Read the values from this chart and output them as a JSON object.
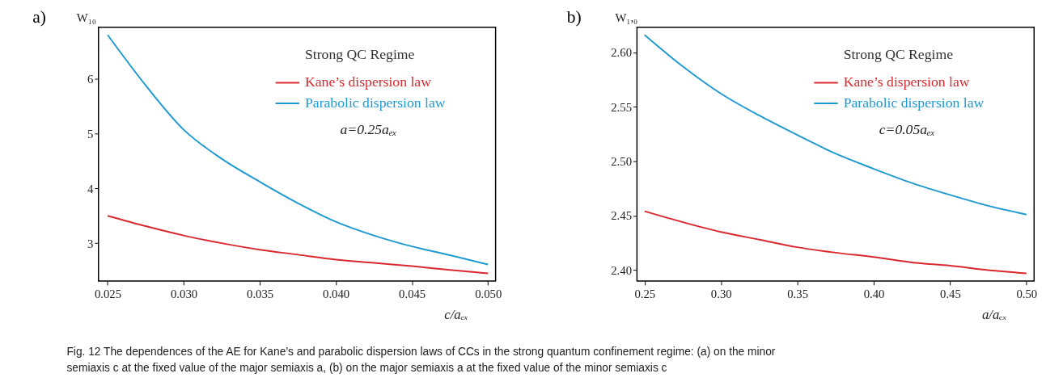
{
  "chart_data": [
    {
      "type": "line",
      "title": "a)",
      "xlabel": "c/aₑₓ",
      "ylabel": "W₁₀",
      "legend_title": "Strong QC Regime",
      "legend": "top right",
      "grid": false,
      "x": [
        0.025,
        0.0275,
        0.03,
        0.0325,
        0.035,
        0.0375,
        0.04,
        0.0425,
        0.045,
        0.0475,
        0.05
      ],
      "series": [
        {
          "name": "Kane’s dispersion law",
          "color": "#d9292f",
          "values": [
            3.5,
            3.31,
            3.14,
            3.0,
            2.88,
            2.79,
            2.7,
            2.64,
            2.58,
            2.51,
            2.45
          ]
        },
        {
          "name": "Parabolic dispersion law",
          "color": "#1f9ad2",
          "values": [
            6.8,
            5.88,
            5.07,
            4.54,
            4.12,
            3.73,
            3.39,
            3.14,
            2.94,
            2.78,
            2.61
          ]
        }
      ],
      "xlim": [
        0.0244,
        0.0505
      ],
      "xticks": [
        {
          "value": 0.025,
          "label": "0.025"
        },
        {
          "value": 0.03,
          "label": "0.030"
        },
        {
          "value": 0.035,
          "label": "0.035"
        },
        {
          "value": 0.04,
          "label": "0.040"
        },
        {
          "value": 0.045,
          "label": "0.045"
        },
        {
          "value": 0.05,
          "label": "0.050"
        }
      ],
      "ylim": [
        2.31,
        6.94
      ],
      "yticks": [
        3,
        4,
        5,
        6
      ],
      "annotations": [
        "a=0.25aₑₓ",
        "Fig. 12 The dependences of the AE for Kane’s and parabolic dispersion laws of CCs in the strong quantum confinement regime: (a) on the minor semiaxis c at the fixed value of the major semiaxis a, (b) on the major semiaxis a at the fixed value of the minor semiaxis c"
      ]
    },
    {
      "type": "line",
      "title": "b)",
      "xlabel": "a/aₑₓ",
      "ylabel": "W₁,₀",
      "legend_title": "Strong QC Regime",
      "legend": "top right",
      "grid": false,
      "x": [
        0.25,
        0.275,
        0.3,
        0.325,
        0.35,
        0.375,
        0.4,
        0.425,
        0.45,
        0.475,
        0.5
      ],
      "series": [
        {
          "name": "Kane’s dispersion law",
          "color": "#d9292f",
          "values": [
            2.454,
            2.444,
            2.435,
            2.428,
            2.421,
            2.416,
            2.412,
            2.407,
            2.404,
            2.4,
            2.397
          ]
        },
        {
          "name": "Parabolic dispersion law",
          "color": "#1f9ad2",
          "values": [
            2.616,
            2.587,
            2.562,
            2.542,
            2.524,
            2.507,
            2.493,
            2.48,
            2.469,
            2.459,
            2.451
          ]
        }
      ],
      "xlim": [
        0.245,
        0.505
      ],
      "xticks": [
        0.25,
        {
          "value": 0.3,
          "label": "0.30"
        },
        0.35,
        {
          "value": 0.4,
          "label": "0.40"
        },
        0.45,
        {
          "value": 0.5,
          "label": "0.50"
        }
      ],
      "ylim": [
        2.39,
        2.623
      ],
      "yticks": [
        {
          "value": 2.4,
          "label": "2.40"
        },
        2.45,
        {
          "value": 2.5,
          "label": "2.50"
        },
        2.55,
        {
          "value": 2.6,
          "label": "2.60"
        }
      ],
      "annotations": [
        "c=0.05aₑₓ"
      ]
    }
  ]
}
